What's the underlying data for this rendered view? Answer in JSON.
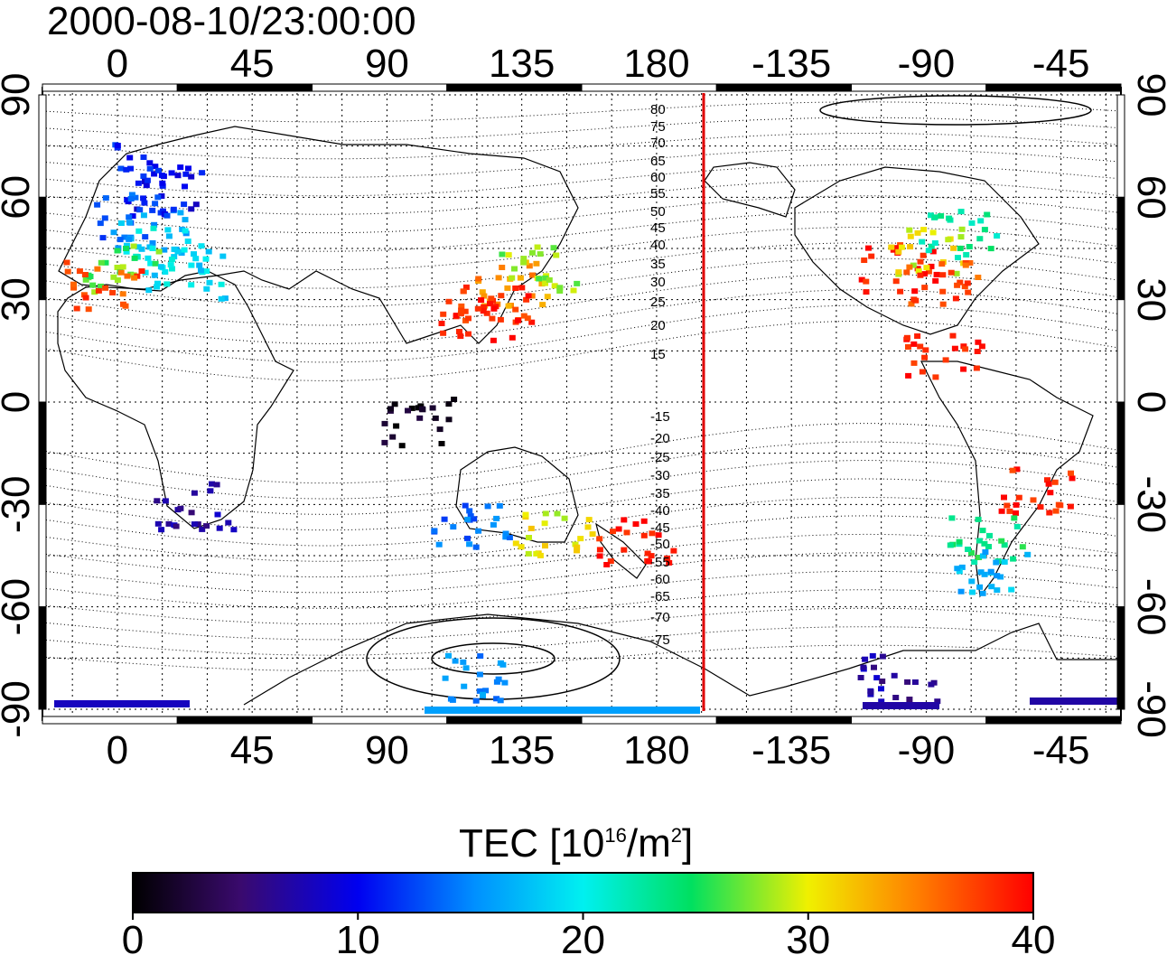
{
  "title": "2000-08-10/23:00:00",
  "colorbar": {
    "label_main": "TEC  [10",
    "label_exp": "16",
    "label_mid": "/m",
    "label_exp2": "2",
    "label_end": "]",
    "ticks": [
      "0",
      "10",
      "20",
      "30",
      "40"
    ],
    "min": 0,
    "max": 40
  },
  "axes": {
    "x_top_ticks": [
      "0",
      "45",
      "90",
      "135",
      "180",
      "-135",
      "-90",
      "-45"
    ],
    "x_bottom_ticks": [
      "0",
      "45",
      "90",
      "135",
      "180",
      "-135",
      "-90",
      "-45"
    ],
    "y_left_ticks": [
      "90",
      "60",
      "30",
      "0",
      "-30",
      "-60",
      "-90"
    ],
    "y_right_ticks": [
      "90",
      "60",
      "30",
      "0",
      "-30",
      "-60",
      "-90"
    ]
  },
  "contour_labels_north": [
    "80",
    "75",
    "70",
    "65",
    "60",
    "55",
    "50",
    "45",
    "40",
    "35",
    "30",
    "25",
    "20",
    "15"
  ],
  "contour_labels_south": [
    "-15",
    "-20",
    "-25",
    "-30",
    "-35",
    "-40",
    "-45",
    "-50",
    "-55",
    "-60",
    "-65",
    "-70",
    "-75"
  ],
  "terminator_color": "#e00000",
  "tec_samples": [
    {
      "lat": 70,
      "lon": 10,
      "tec": 11
    },
    {
      "lat": 62,
      "lon": 15,
      "tec": 10
    },
    {
      "lat": 55,
      "lon": 5,
      "tec": 13
    },
    {
      "lat": 50,
      "lon": 10,
      "tec": 17
    },
    {
      "lat": 45,
      "lon": 15,
      "tec": 20
    },
    {
      "lat": 40,
      "lon": 0,
      "tec": 27
    },
    {
      "lat": 35,
      "lon": -5,
      "tec": 37
    },
    {
      "lat": 38,
      "lon": 22,
      "tec": 19
    },
    {
      "lat": 35,
      "lon": 130,
      "tec": 34
    },
    {
      "lat": 30,
      "lon": 125,
      "tec": 38
    },
    {
      "lat": 40,
      "lon": 140,
      "tec": 28
    },
    {
      "lat": 25,
      "lon": 120,
      "tec": 39
    },
    {
      "lat": 40,
      "lon": -100,
      "tec": 39
    },
    {
      "lat": 45,
      "lon": -90,
      "tec": 30
    },
    {
      "lat": 50,
      "lon": -80,
      "tec": 23
    },
    {
      "lat": 35,
      "lon": -85,
      "tec": 37
    },
    {
      "lat": 15,
      "lon": -85,
      "tec": 39
    },
    {
      "lat": -25,
      "lon": -55,
      "tec": 39
    },
    {
      "lat": -40,
      "lon": -70,
      "tec": 24
    },
    {
      "lat": -50,
      "lon": -70,
      "tec": 17
    },
    {
      "lat": -30,
      "lon": 25,
      "tec": 7
    },
    {
      "lat": -5,
      "lon": 100,
      "tec": 1
    },
    {
      "lat": -35,
      "lon": 117,
      "tec": 14
    },
    {
      "lat": -38,
      "lon": 145,
      "tec": 30
    },
    {
      "lat": -40,
      "lon": 172,
      "tec": 39
    },
    {
      "lat": -80,
      "lon": 120,
      "tec": 15
    },
    {
      "lat": -80,
      "lon": -100,
      "tec": 7
    }
  ]
}
